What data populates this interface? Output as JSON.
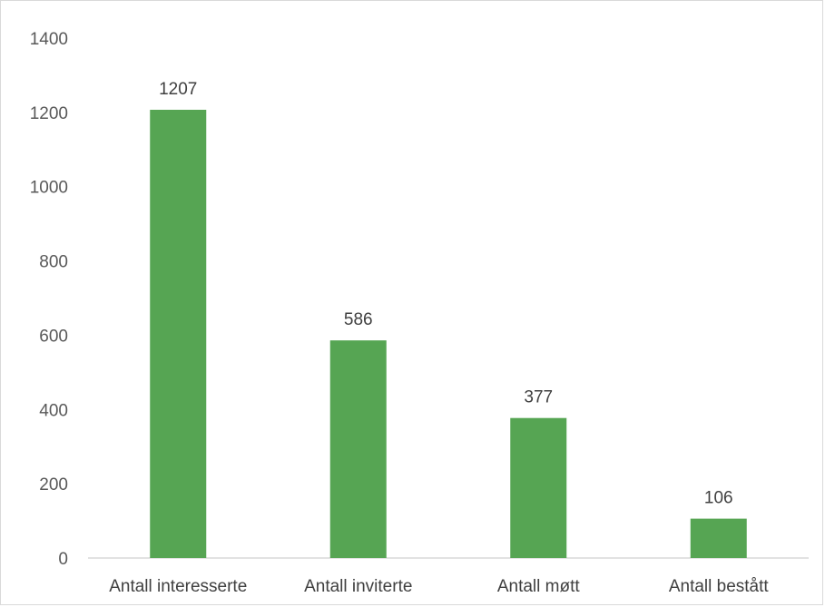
{
  "chart_data": {
    "type": "bar",
    "categories": [
      "Antall interesserte",
      "Antall inviterte",
      "Antall møtt",
      "Antall bestått"
    ],
    "values": [
      1207,
      586,
      377,
      106
    ],
    "data_labels": [
      "1207",
      "586",
      "377",
      "106"
    ],
    "title": "",
    "xlabel": "",
    "ylabel": "",
    "ylim": [
      0,
      1400
    ],
    "y_ticks": [
      0,
      200,
      400,
      600,
      800,
      1000,
      1200,
      1400
    ],
    "y_tick_labels": [
      "0",
      "200",
      "400",
      "600",
      "800",
      "1000",
      "1200",
      "1400"
    ],
    "grid": false,
    "legend": "none",
    "bar_color": "#56a553",
    "axis_color": "#d9d9d9"
  }
}
